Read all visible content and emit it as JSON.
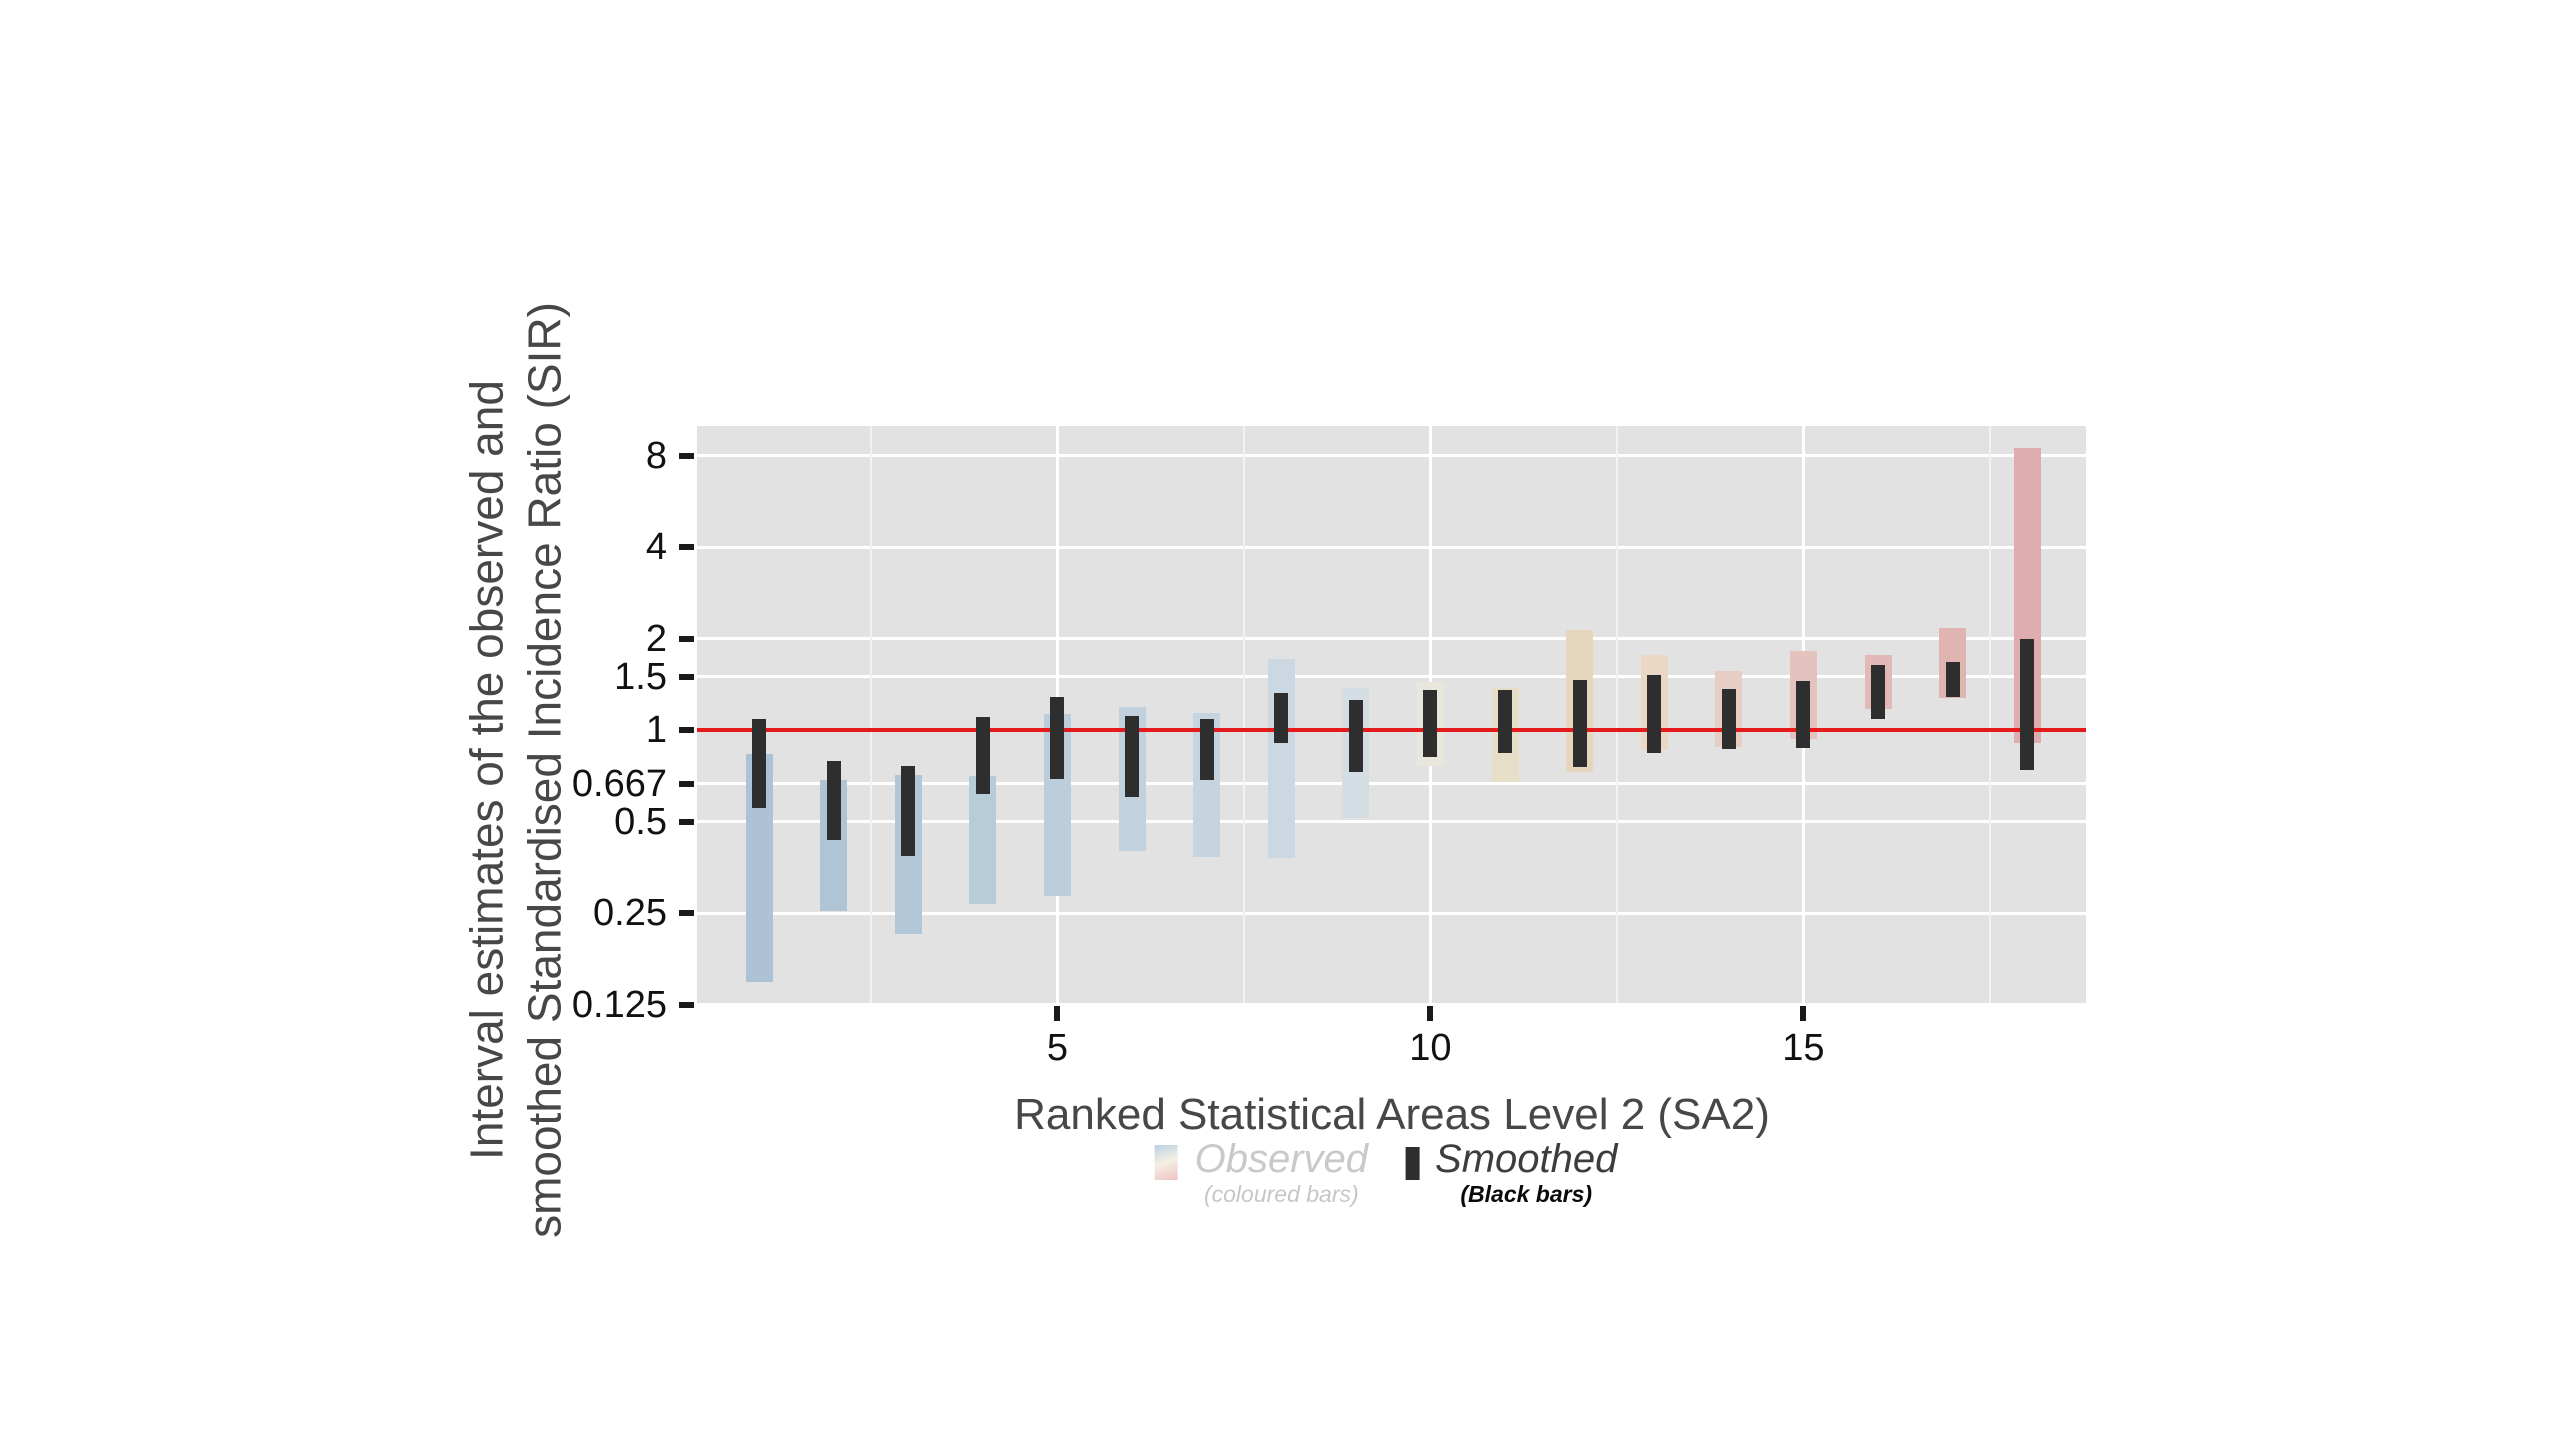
{
  "colors": {
    "background": "#FFFFFF",
    "panel_background": "#E2E2E2",
    "gridline_major": "#FFFFFF",
    "gridline_minor": "#F2F2F2",
    "reference_line": "#E41A1C",
    "smoothed_bar": "#2E2E2E",
    "tick_mark": "#1A1A1A",
    "tick_label": "#111111",
    "axis_title": "#474747",
    "legend_observed_text": "#C9C9C9",
    "legend_observed_sub_text": "#C6C6C6",
    "legend_smoothed_text": "#3D3D3D",
    "legend_smoothed_sub_text": "#0A0A0A"
  },
  "y_axis": {
    "title_line1": "Interval estimates of the observed and",
    "title_line2": "smoothed Standardised Incidence Ratio (SIR)",
    "tick_labels": [
      "8",
      "4",
      "2",
      "1.5",
      "1",
      "0.667",
      "0.5",
      "0.25",
      "0.125"
    ],
    "tick_values": [
      8,
      4,
      2,
      1.5,
      1,
      0.667,
      0.5,
      0.25,
      0.125
    ]
  },
  "x_axis": {
    "title": "Ranked Statistical Areas Level 2 (SA2)",
    "tick_labels": [
      "5",
      "10",
      "15"
    ],
    "tick_values": [
      5,
      10,
      15
    ],
    "minor_grid_positions": [
      2.5,
      7.5,
      12.5,
      17.5
    ]
  },
  "legend": {
    "observed_label": "Observed",
    "observed_sublabel": "(coloured bars)",
    "smoothed_label": "Smoothed",
    "smoothed_sublabel": "(Black bars)"
  },
  "chart_data": {
    "type": "bar",
    "subtype": "interval-caterpillar-plot",
    "title": "",
    "xlabel": "Ranked Statistical Areas Level 2 (SA2)",
    "ylabel": "Interval estimates of the observed and smoothed Standardised Incidence Ratio (SIR)",
    "yscale": "log2",
    "yticks": [
      8,
      4,
      2,
      1.5,
      1,
      0.667,
      0.5,
      0.25,
      0.125
    ],
    "xticks": [
      5,
      10,
      15
    ],
    "ylim": [
      0.127,
      10
    ],
    "xlim": [
      0.2,
      18.8
    ],
    "grid": true,
    "legend_position": "bottom",
    "reference_y": 1,
    "x": [
      1,
      2,
      3,
      4,
      5,
      6,
      7,
      8,
      9,
      10,
      11,
      12,
      13,
      14,
      15,
      16,
      17,
      18
    ],
    "series": [
      {
        "name": "Observed (coloured bars)",
        "intervals": [
          [
            0.148,
            0.837
          ],
          [
            0.254,
            0.683
          ],
          [
            0.213,
            0.714
          ],
          [
            0.268,
            0.705
          ],
          [
            0.285,
            1.13
          ],
          [
            0.399,
            1.19
          ],
          [
            0.381,
            1.14
          ],
          [
            0.379,
            1.71
          ],
          [
            0.514,
            1.37
          ],
          [
            0.76,
            1.44
          ],
          [
            0.675,
            1.37
          ],
          [
            0.728,
            2.13
          ],
          [
            0.859,
            1.76
          ],
          [
            0.881,
            1.56
          ],
          [
            0.932,
            1.82
          ],
          [
            1.17,
            1.77
          ],
          [
            1.27,
            2.17
          ],
          [
            0.904,
            8.48
          ]
        ],
        "bar_colors": [
          "#ADC3D5",
          "#AFC5D6",
          "#B2C7D7",
          "#B8CBD9",
          "#BCCEDB",
          "#C1D1DD",
          "#C6D4DF",
          "#CBD7E1",
          "#D4DDE4",
          "#E9E7DB",
          "#E7DEC9",
          "#E5D6BD",
          "#EAD8C4",
          "#E6CEC4",
          "#E4C2BE",
          "#E1BAB7",
          "#DFB4B1",
          "#DFADAF"
        ]
      },
      {
        "name": "Smoothed (Black bars)",
        "color": "#2E2E2E",
        "intervals": [
          [
            0.553,
            1.09
          ],
          [
            0.433,
            0.789
          ],
          [
            0.386,
            0.762
          ],
          [
            0.617,
            1.1
          ],
          [
            0.692,
            1.28
          ],
          [
            0.602,
            1.11
          ],
          [
            0.683,
            1.09
          ],
          [
            0.908,
            1.32
          ],
          [
            0.728,
            1.26
          ],
          [
            0.816,
            1.35
          ],
          [
            0.842,
            1.35
          ],
          [
            0.756,
            1.46
          ],
          [
            0.837,
            1.52
          ],
          [
            0.863,
            1.36
          ],
          [
            0.87,
            1.45
          ],
          [
            1.09,
            1.64
          ],
          [
            1.28,
            1.67
          ],
          [
            0.737,
            2.0
          ]
        ]
      }
    ]
  }
}
